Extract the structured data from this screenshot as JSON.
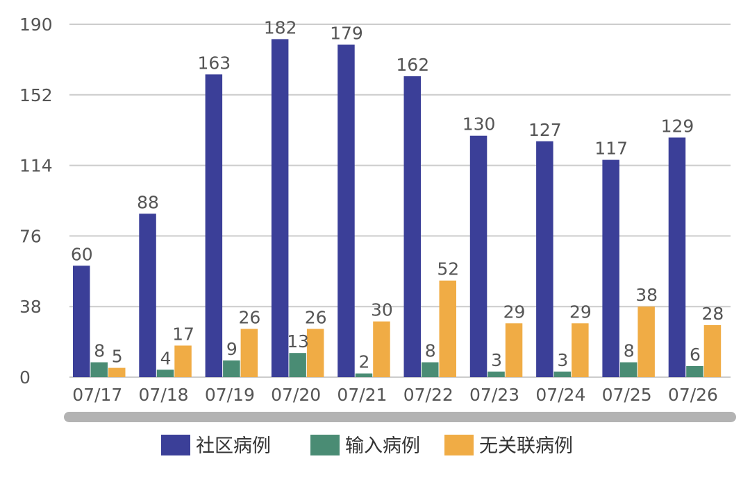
{
  "chart_data": {
    "type": "bar",
    "categories": [
      "07/17",
      "07/18",
      "07/19",
      "07/20",
      "07/21",
      "07/22",
      "07/23",
      "07/24",
      "07/25",
      "07/26"
    ],
    "series": [
      {
        "name": "社区病例",
        "color": "#3b3f98",
        "values": [
          60,
          88,
          163,
          182,
          179,
          162,
          130,
          127,
          117,
          129
        ]
      },
      {
        "name": "输入病例",
        "color": "#4a8c74",
        "values": [
          8,
          4,
          9,
          13,
          2,
          8,
          3,
          3,
          8,
          6
        ]
      },
      {
        "name": "无关联病例",
        "color": "#f0ac45",
        "values": [
          5,
          17,
          26,
          26,
          30,
          52,
          29,
          29,
          38,
          28
        ]
      }
    ],
    "y_ticks": [
      0,
      38,
      76,
      114,
      152,
      190
    ],
    "ylim": [
      0,
      190
    ],
    "title": "",
    "xlabel": "",
    "ylabel": "",
    "grid": true,
    "legend_position": "bottom-center",
    "data_labels": true,
    "scrollbar": true
  }
}
